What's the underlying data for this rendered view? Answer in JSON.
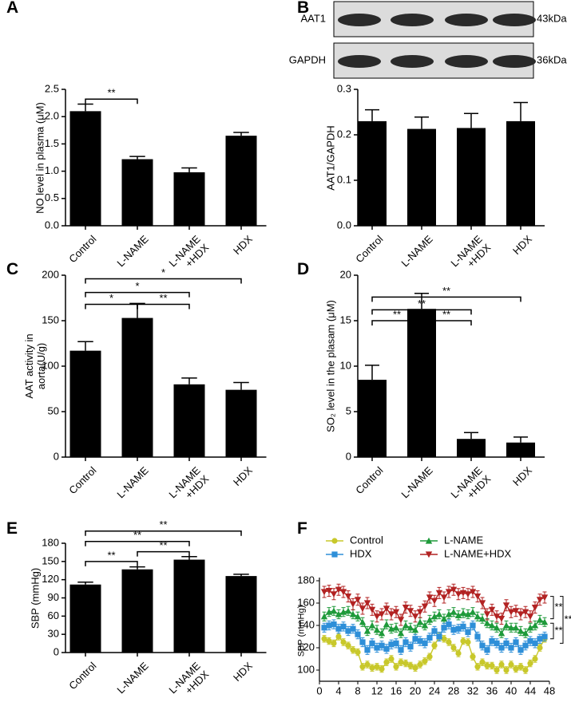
{
  "chart_data": [
    {
      "type": "bar",
      "label": "A",
      "ylabel": "NO level in plasma (μM)",
      "categories": [
        "Control",
        "L-NAME",
        "L-NAME\n+HDX",
        "HDX"
      ],
      "values": [
        2.1,
        1.22,
        0.98,
        1.65
      ],
      "errors": [
        0.13,
        0.05,
        0.08,
        0.06
      ],
      "color": "#000000",
      "ylim": [
        0,
        2.5
      ],
      "yticks": [
        {
          "value": 0,
          "label": "0.0"
        },
        0.5,
        {
          "value": 1,
          "label": "1.0"
        },
        1.5,
        {
          "value": 2,
          "label": "2.0"
        },
        2.5
      ],
      "comparisons": [
        {
          "from": 0,
          "to": 1,
          "label": "**",
          "y": 2.32
        }
      ]
    },
    {
      "type": "bar",
      "label": "B",
      "ylabel": "AAT1/GAPDH",
      "blot": [
        {
          "name": "AAT1",
          "size": "43kDa"
        },
        {
          "name": "GAPDH",
          "size": "36kDa"
        }
      ],
      "categories": [
        "Control",
        "L-NAME",
        "L-NAME\n+HDX",
        "HDX"
      ],
      "values": [
        0.23,
        0.213,
        0.215,
        0.23
      ],
      "errors": [
        0.025,
        0.026,
        0.032,
        0.041
      ],
      "color": "#000000",
      "ylim": [
        0,
        0.3
      ],
      "yticks": [
        {
          "value": 0,
          "label": "0.0"
        },
        0.1,
        0.2,
        0.3
      ],
      "comparisons": []
    },
    {
      "type": "bar",
      "label": "C",
      "ylabel": "AAT activity in\naorta(U/g)",
      "categories": [
        "Control",
        "L-NAME",
        "L-NAME\n+HDX",
        "HDX"
      ],
      "values": [
        117,
        153,
        80,
        74
      ],
      "errors": [
        10,
        16,
        7,
        8
      ],
      "color": "#000000",
      "ylim": [
        0,
        200
      ],
      "yticks": [
        0,
        50,
        100,
        150,
        200
      ],
      "comparisons": [
        {
          "from": 0,
          "to": 3,
          "label": "*",
          "y": 196
        },
        {
          "from": 0,
          "to": 2,
          "label": "*",
          "y": 181
        },
        {
          "from": 0,
          "to": 1,
          "label": "*",
          "y": 168
        },
        {
          "from": 1,
          "to": 2,
          "label": "**",
          "y": 168
        }
      ]
    },
    {
      "type": "bar",
      "label": "D",
      "ylabel": "SO₂ level in the plasam (μM)",
      "categories": [
        "Control",
        "L-NAME",
        "L-NAME\n+HDX",
        "HDX"
      ],
      "values": [
        8.5,
        16.3,
        2.0,
        1.6
      ],
      "errors": [
        1.6,
        1.7,
        0.7,
        0.6
      ],
      "color": "#000000",
      "ylim": [
        0,
        20
      ],
      "yticks": [
        0,
        5,
        10,
        15,
        20
      ],
      "comparisons": [
        {
          "from": 0,
          "to": 3,
          "label": "**",
          "y": 17.6
        },
        {
          "from": 0,
          "to": 2,
          "label": "**",
          "y": 16.2
        },
        {
          "from": 0,
          "to": 1,
          "label": "**",
          "y": 15
        },
        {
          "from": 1,
          "to": 2,
          "label": "**",
          "y": 15
        }
      ]
    },
    {
      "type": "bar",
      "label": "E",
      "ylabel": "SBP (mmHg)",
      "categories": [
        "Control",
        "L-NAME",
        "L-NAME\n+HDX",
        "HDX"
      ],
      "values": [
        112,
        137,
        153,
        126
      ],
      "errors": [
        4,
        4,
        5,
        3
      ],
      "color": "#000000",
      "ylim": [
        0,
        180
      ],
      "yticks": [
        0,
        30,
        60,
        90,
        120,
        150,
        180
      ],
      "comparisons": [
        {
          "from": 0,
          "to": 3,
          "label": "**",
          "y": 200
        },
        {
          "from": 0,
          "to": 2,
          "label": "**",
          "y": 183
        },
        {
          "from": 1,
          "to": 2,
          "label": "**",
          "y": 166
        },
        {
          "from": 0,
          "to": 1,
          "label": "**",
          "y": 150
        }
      ]
    },
    {
      "type": "line",
      "label": "F",
      "ylabel": "SBP (mmHg)",
      "legend": "top-left",
      "x": [
        1,
        2,
        3,
        4,
        5,
        6,
        7,
        8,
        9,
        10,
        11,
        12,
        13,
        14,
        15,
        16,
        17,
        18,
        19,
        20,
        21,
        22,
        23,
        24,
        25,
        26,
        27,
        28,
        29,
        30,
        31,
        32,
        33,
        34,
        35,
        36,
        37,
        38,
        39,
        40,
        41,
        42,
        43,
        44,
        45,
        46,
        47
      ],
      "xlim": [
        0,
        48
      ],
      "xticks": [
        0,
        4,
        8,
        12,
        16,
        20,
        24,
        28,
        32,
        36,
        40,
        44,
        48
      ],
      "ylim": [
        90,
        180
      ],
      "yticks": [
        100,
        120,
        140,
        160,
        180
      ],
      "series": [
        {
          "name": "Control",
          "color": "#c8c82a",
          "marker": "circle",
          "values": [
            128,
            126,
            124,
            130,
            125,
            122,
            118,
            116,
            103,
            105,
            102,
            103,
            101,
            107,
            110,
            103,
            107,
            106,
            104,
            102,
            105,
            108,
            112,
            122,
            130,
            128,
            125,
            120,
            115,
            126,
            125,
            112,
            103,
            107,
            104,
            104,
            100,
            105,
            100,
            105,
            101,
            103,
            100,
            106,
            110,
            120,
            128
          ],
          "errors": [
            3,
            3,
            3,
            3,
            3,
            3,
            3,
            3,
            3,
            3,
            3,
            3,
            3,
            3,
            3,
            3,
            3,
            3,
            3,
            3,
            3,
            3,
            3,
            3,
            3,
            3,
            3,
            3,
            3,
            3,
            3,
            3,
            3,
            3,
            3,
            3,
            3,
            3,
            3,
            3,
            3,
            3,
            3,
            3,
            3,
            3,
            3
          ]
        },
        {
          "name": "L-NAME",
          "color": "#1e9a3a",
          "marker": "triangle",
          "values": [
            148,
            152,
            153,
            150,
            152,
            153,
            150,
            148,
            143,
            135,
            140,
            136,
            133,
            141,
            137,
            138,
            133,
            140,
            138,
            136,
            143,
            140,
            145,
            148,
            150,
            146,
            150,
            152,
            149,
            151,
            150,
            152,
            148,
            146,
            142,
            140,
            138,
            133,
            140,
            138,
            138,
            135,
            133,
            138,
            140,
            145,
            143
          ],
          "errors": [
            4,
            4,
            4,
            4,
            4,
            4,
            4,
            4,
            4,
            4,
            4,
            4,
            4,
            4,
            4,
            4,
            4,
            4,
            4,
            4,
            4,
            4,
            4,
            4,
            4,
            4,
            4,
            4,
            4,
            4,
            4,
            4,
            4,
            4,
            4,
            4,
            4,
            4,
            4,
            4,
            4,
            4,
            4,
            4,
            4,
            4,
            4
          ]
        },
        {
          "name": "HDX",
          "color": "#2e8fd8",
          "marker": "square",
          "values": [
            138,
            140,
            141,
            137,
            139,
            135,
            137,
            132,
            125,
            118,
            124,
            120,
            122,
            119,
            123,
            124,
            118,
            125,
            121,
            128,
            126,
            124,
            129,
            135,
            130,
            138,
            141,
            136,
            137,
            139,
            134,
            140,
            130,
            122,
            118,
            126,
            124,
            120,
            124,
            120,
            125,
            118,
            122,
            126,
            124,
            128,
            130
          ],
          "errors": [
            4,
            4,
            4,
            4,
            4,
            4,
            4,
            4,
            4,
            4,
            4,
            4,
            4,
            4,
            4,
            4,
            4,
            4,
            4,
            4,
            4,
            4,
            4,
            4,
            4,
            4,
            4,
            4,
            4,
            4,
            4,
            4,
            4,
            4,
            4,
            4,
            4,
            4,
            4,
            4,
            4,
            4,
            4,
            4,
            4,
            4,
            4
          ]
        },
        {
          "name": "L-NAME+HDX",
          "color": "#b22222",
          "marker": "triangle-down",
          "values": [
            170,
            171,
            168,
            172,
            170,
            166,
            159,
            163,
            155,
            160,
            154,
            148,
            150,
            155,
            150,
            152,
            145,
            156,
            153,
            148,
            152,
            157,
            165,
            162,
            169,
            165,
            170,
            172,
            168,
            169,
            168,
            170,
            166,
            160,
            150,
            154,
            148,
            146,
            158,
            152,
            153,
            150,
            152,
            148,
            156,
            163,
            165
          ],
          "errors": [
            5,
            5,
            5,
            5,
            5,
            5,
            5,
            5,
            5,
            5,
            5,
            5,
            5,
            5,
            5,
            5,
            5,
            5,
            5,
            5,
            5,
            5,
            5,
            5,
            5,
            5,
            5,
            5,
            5,
            5,
            5,
            5,
            5,
            5,
            5,
            5,
            5,
            5,
            5,
            5,
            5,
            5,
            5,
            5,
            5,
            5,
            5
          ]
        }
      ],
      "brackets": [
        {
          "y": [
            166,
            146
          ],
          "label": "**"
        },
        {
          "y": [
            142,
            128
          ],
          "label": "**"
        },
        {
          "y": [
            166,
            124
          ],
          "label": "**"
        }
      ]
    }
  ]
}
